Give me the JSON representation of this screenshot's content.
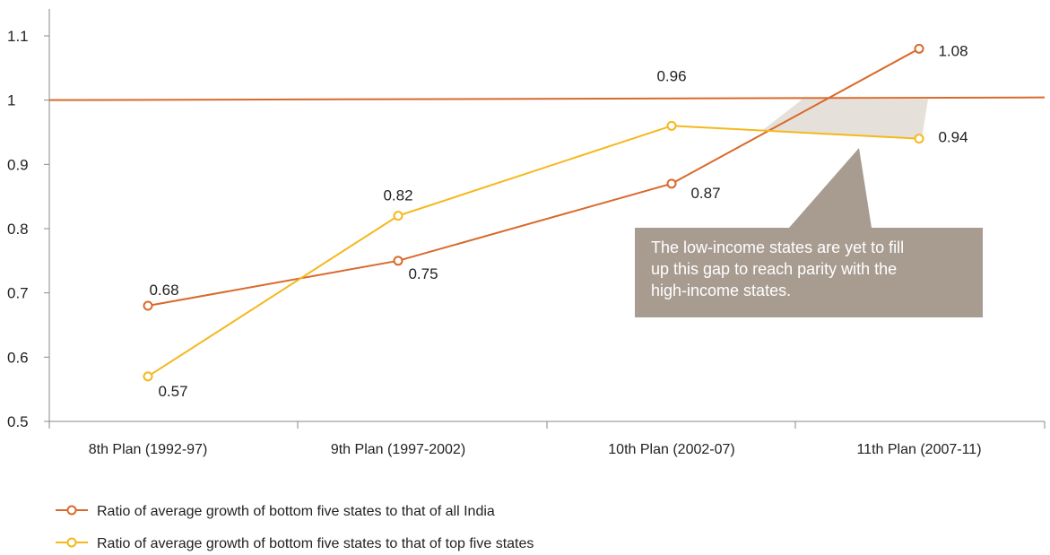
{
  "chart_data": {
    "type": "line",
    "title": "",
    "xlabel": "",
    "ylabel": "",
    "ylim": [
      0.5,
      1.1
    ],
    "yticks": [
      "0.5",
      "0.6",
      "0.7",
      "0.8",
      "0.9",
      "1",
      "1.1"
    ],
    "categories": [
      "8th Plan (1992-97)",
      "9th Plan (1997-2002)",
      "10th Plan (2002-07)",
      "11th Plan (2007-11)"
    ],
    "series": [
      {
        "name": "Ratio of average growth of bottom five states to that of all India",
        "values": [
          0.68,
          0.75,
          0.87,
          1.08
        ],
        "labels": [
          "0.68",
          "0.75",
          "0.87",
          "1.08"
        ],
        "color": "#D9692B"
      },
      {
        "name": "Ratio of average growth of bottom five states to that of top five states",
        "values": [
          0.57,
          0.82,
          0.96,
          0.94
        ],
        "labels": [
          "0.57",
          "0.82",
          "0.96",
          "0.94"
        ],
        "color": "#F5B81C"
      }
    ],
    "reference_line": {
      "value": 1.0,
      "color": "#D9692B"
    },
    "gap_fill_color": "#E6E0DA",
    "annotation": {
      "lines": [
        "The low-income states are yet to fill",
        "up this gap to reach parity with the",
        "high-income states."
      ],
      "background": "#A89C91",
      "text_color": "#ffffff"
    },
    "grid": false,
    "legend_position": "bottom-left"
  }
}
